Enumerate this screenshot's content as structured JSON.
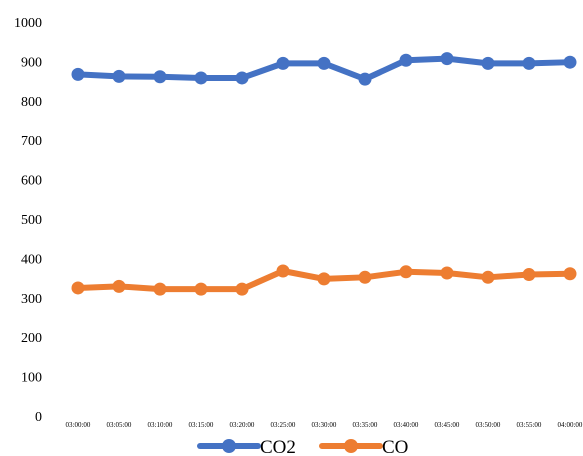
{
  "chart_data": {
    "type": "line",
    "title": "",
    "xlabel": "",
    "ylabel": "",
    "ylim": [
      0,
      1000
    ],
    "y_ticks": [
      "0",
      "100",
      "200",
      "300",
      "400",
      "500",
      "600",
      "700",
      "800",
      "900",
      "1000"
    ],
    "categories": [
      "03:00:00",
      "03:05:00",
      "03:10:00",
      "03:15:00",
      "03:20:00",
      "03:25:00",
      "03:30:00",
      "03:35:00",
      "03:40:00",
      "03:45:00",
      "03:50:00",
      "03:55:00",
      "04:00:00"
    ],
    "series": [
      {
        "name": "CO2",
        "color": "#4472C4",
        "values": [
          867,
          862,
          861,
          858,
          858,
          895,
          895,
          855,
          903,
          907,
          895,
          895,
          898
        ]
      },
      {
        "name": "CO",
        "color": "#ED7D31",
        "values": [
          325,
          329,
          322,
          322,
          322,
          368,
          348,
          352,
          366,
          363,
          352,
          359,
          361
        ]
      }
    ],
    "legend": "bottom",
    "grid": false
  }
}
